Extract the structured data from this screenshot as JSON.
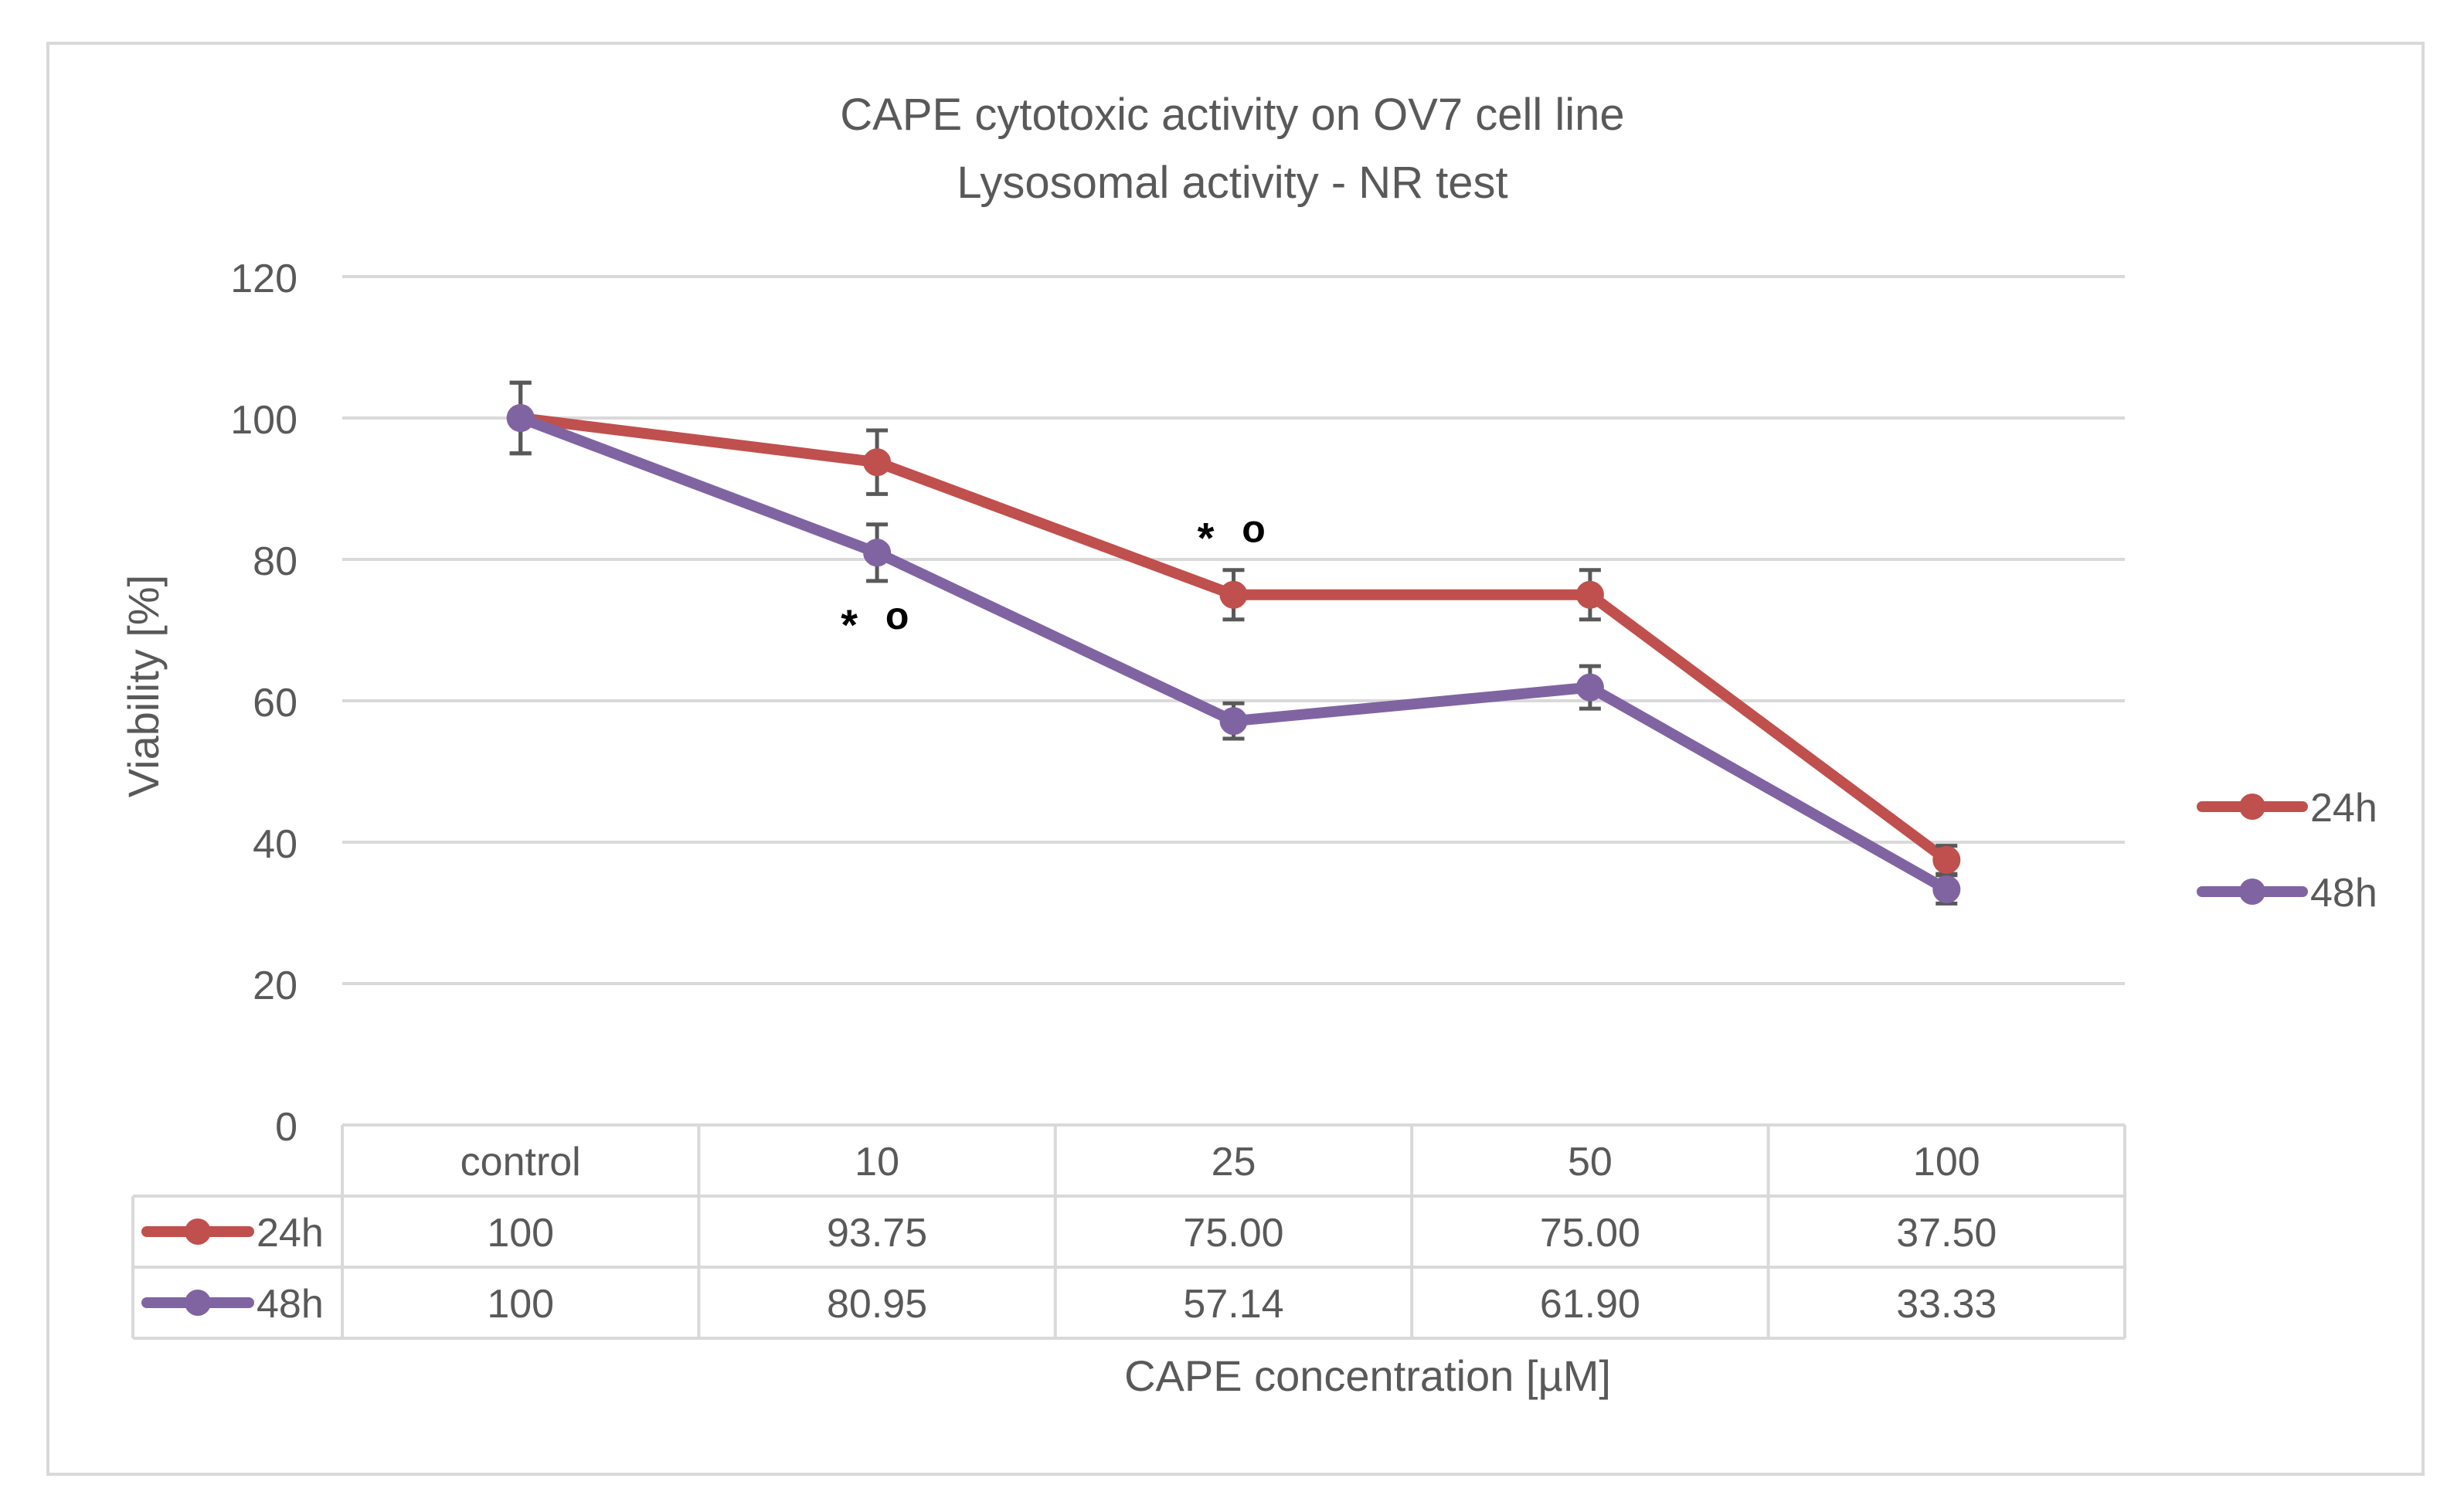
{
  "chart_data": {
    "type": "line",
    "title": [
      "CAPE cytotoxic activity on OV7 cell line",
      "Lysosomal activity - NR test"
    ],
    "xlabel": "CAPE concentration [µM]",
    "ylabel": "Viability  [%]",
    "ylim": [
      0,
      120
    ],
    "yticks": [
      0,
      20,
      40,
      60,
      80,
      100,
      120
    ],
    "grid": true,
    "legend_position": "right",
    "categories": [
      "control",
      "10",
      "25",
      "50",
      "100"
    ],
    "series": [
      {
        "name": "24h",
        "color": "#c0504d",
        "values": [
          100,
          93.75,
          75.0,
          75.0,
          37.5
        ],
        "labels": [
          "100",
          "93.75",
          "75.00",
          "75.00",
          "37.50"
        ],
        "errors": [
          5,
          4.5,
          3.5,
          3.5,
          2
        ]
      },
      {
        "name": "48h",
        "color": "#8064a2",
        "values": [
          100,
          80.95,
          57.14,
          61.9,
          33.33
        ],
        "labels": [
          "100",
          "80.95",
          "57.14",
          "61.90",
          "33.33"
        ],
        "errors": [
          5,
          4,
          2.5,
          3,
          2
        ]
      }
    ],
    "annotations": [
      {
        "series": 0,
        "index": 2,
        "text": "*",
        "text2": "o",
        "placement": "above"
      },
      {
        "series": 1,
        "index": 1,
        "text": "*",
        "text2": "o",
        "placement": "below"
      }
    ]
  }
}
